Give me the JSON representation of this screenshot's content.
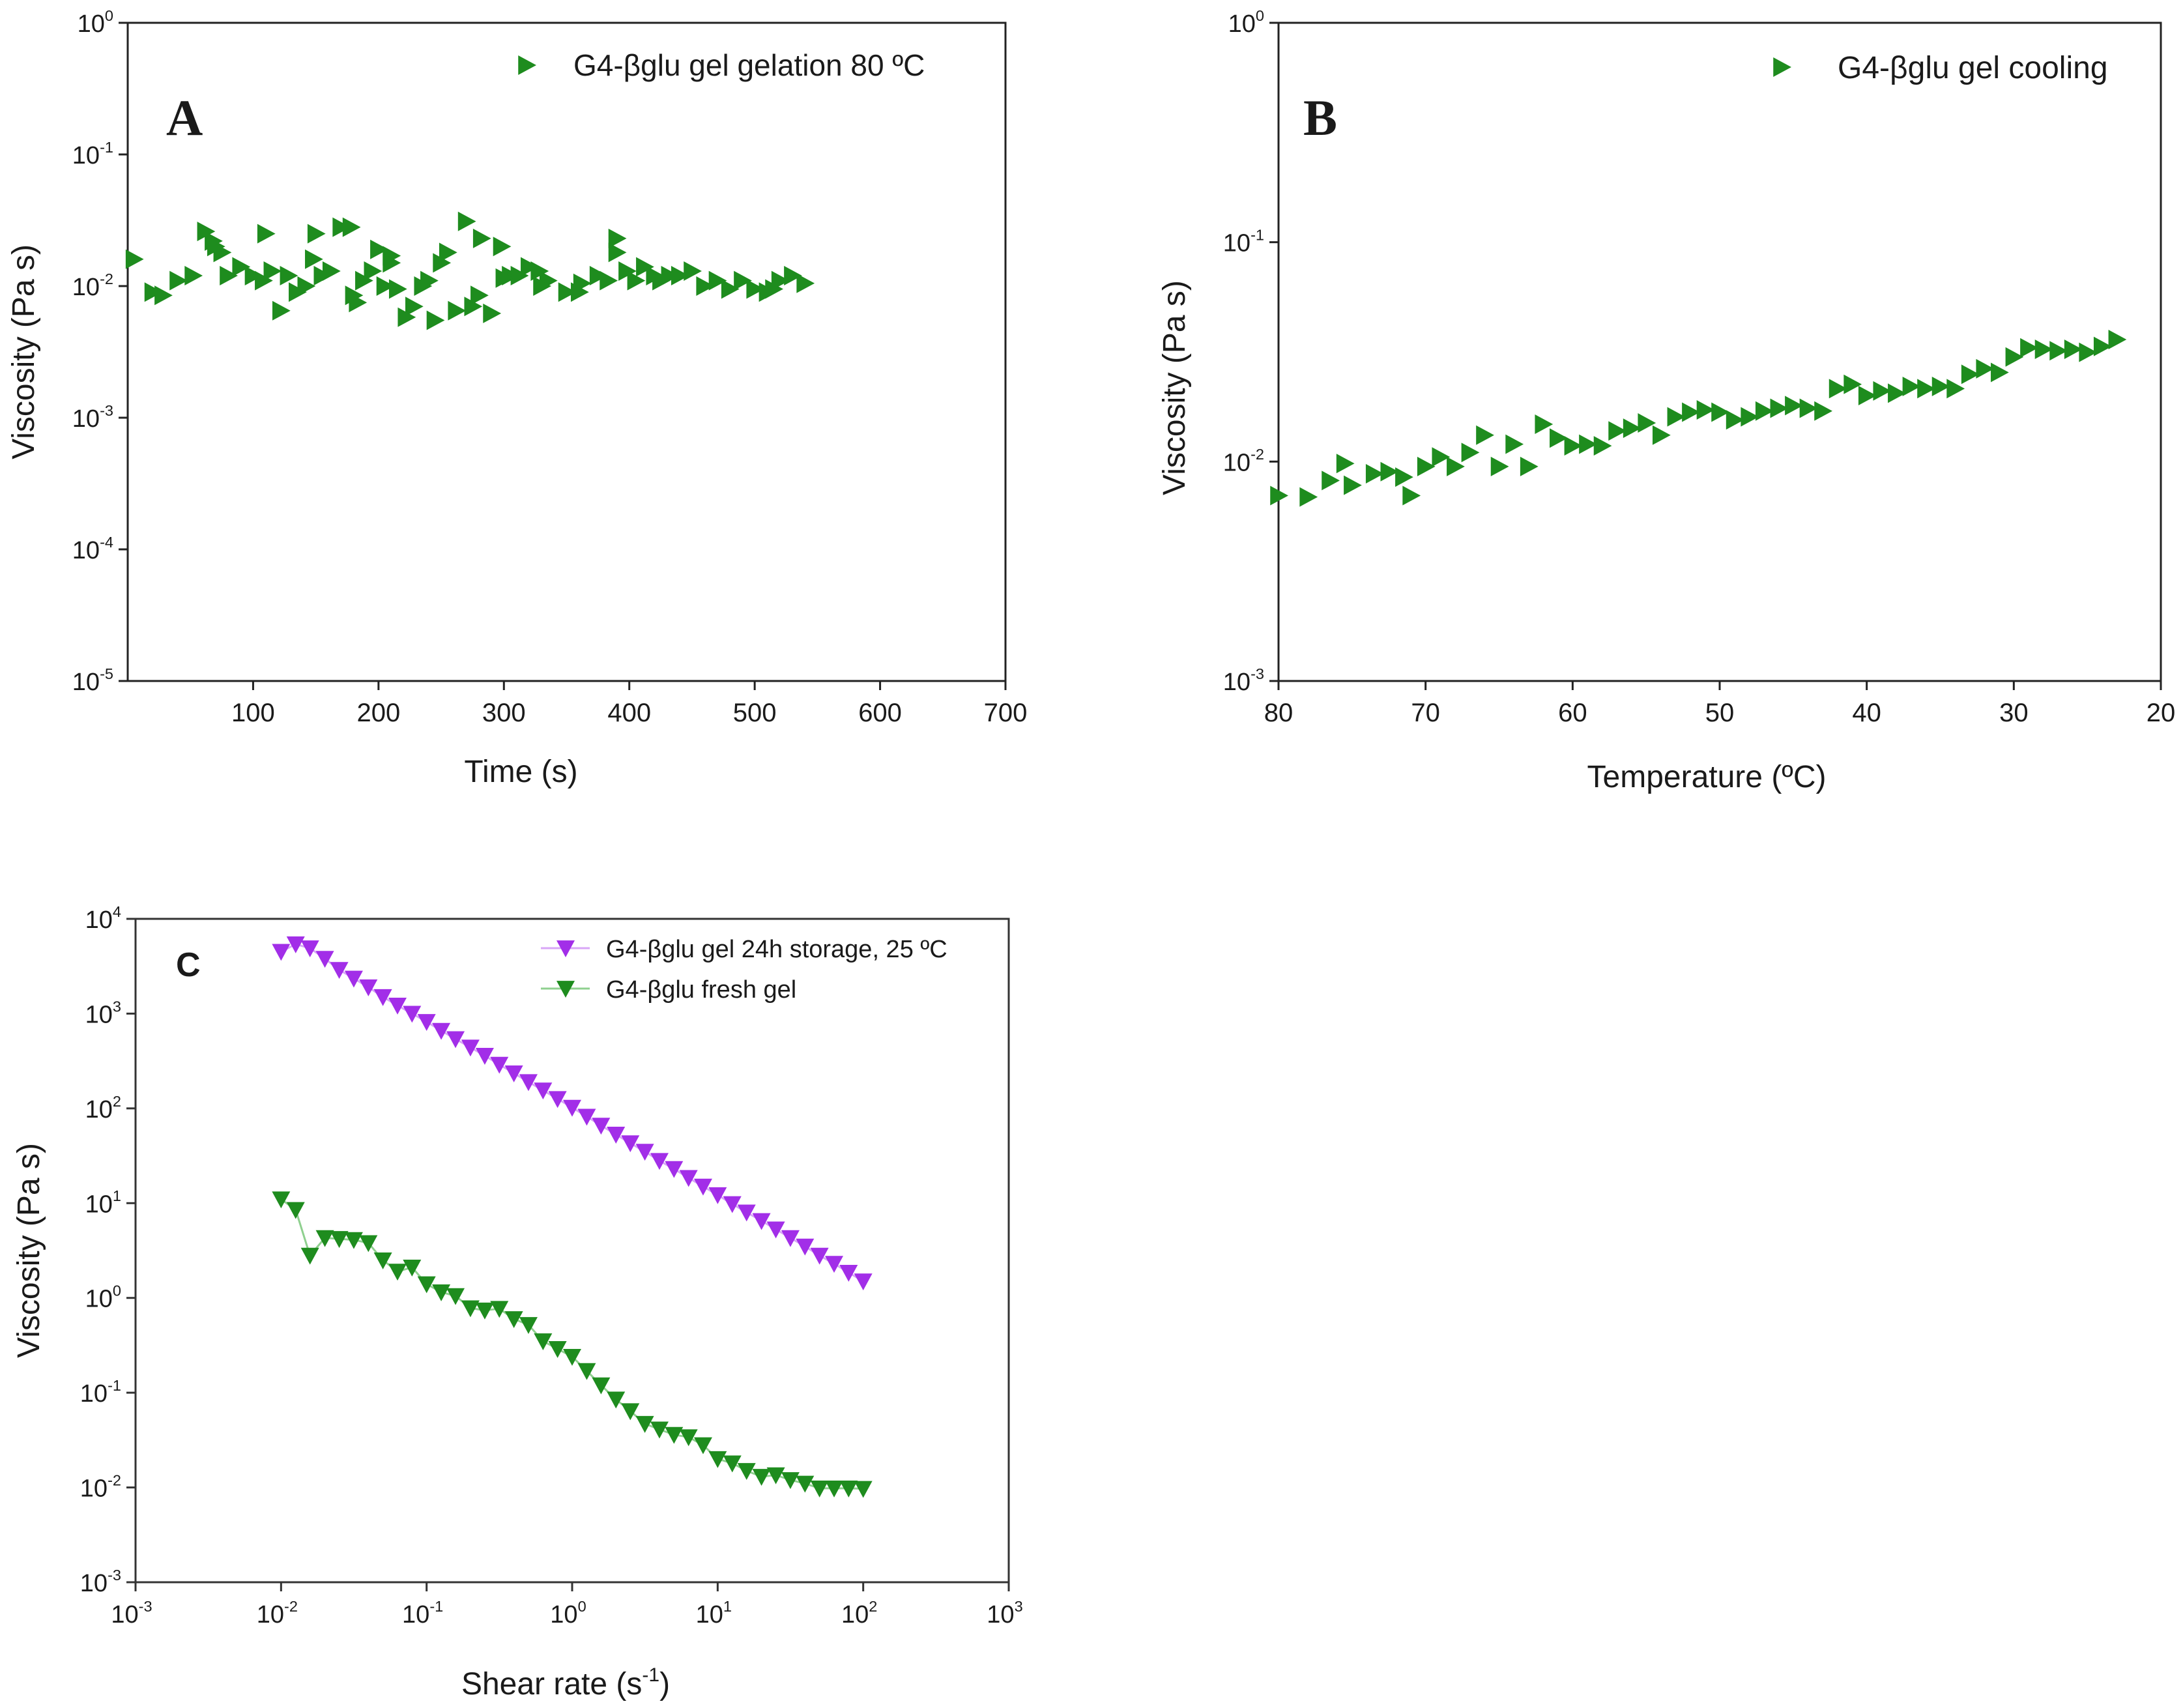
{
  "figure_colors": {
    "green": "#1e8c1e",
    "purple": "#a22ee8",
    "green_line": "#8fd08f",
    "purple_line": "#d8a6f7"
  },
  "chart_data": [
    {
      "panel": "A",
      "type": "scatter",
      "xlabel": "Time (s)",
      "ylabel": "Viscosity (Pa s)",
      "xscale": "linear",
      "yscale": "log",
      "xlim": [
        0,
        700
      ],
      "ylim": [
        1e-05,
        1
      ],
      "x_ticks": [
        100,
        200,
        300,
        400,
        500,
        600,
        700
      ],
      "x_tick_labels": [
        "100",
        "200",
        "300",
        "400",
        "500",
        "600",
        "700"
      ],
      "y_tick_exponents": [
        "-5",
        "-4",
        "-3",
        "-2",
        "-1",
        "0"
      ],
      "y_tick_base": "10",
      "legend_position": "top-right",
      "series": [
        {
          "name": "G4-βglu gel gelation 80 ºC",
          "marker": "triangle-right",
          "color": "#1e8c1e",
          "x": [
            5,
            20,
            28,
            40,
            52,
            62,
            68,
            75,
            80,
            90,
            100,
            108,
            115,
            122,
            128,
            135,
            142,
            148,
            155,
            162,
            170,
            178,
            183,
            188,
            195,
            200,
            205,
            210,
            215,
            222,
            228,
            235,
            245,
            250,
            255,
            262,
            270,
            275,
            282,
            290,
            298,
            305,
            312,
            320,
            328,
            335,
            350,
            362,
            375,
            383,
            390,
            398,
            405,
            412,
            420,
            432,
            440,
            450,
            470,
            480,
            490,
            500,
            510,
            515,
            530,
            540,
            70,
            110,
            150,
            180,
            210,
            240,
            280,
            300,
            330,
            360,
            390,
            425,
            460,
            520
          ],
          "y": [
            0.016,
            0.009,
            0.0085,
            0.011,
            0.012,
            0.026,
            0.022,
            0.018,
            0.012,
            0.014,
            0.012,
            0.011,
            0.013,
            0.0065,
            0.012,
            0.009,
            0.01,
            0.016,
            0.012,
            0.013,
            0.028,
            0.028,
            0.0075,
            0.011,
            0.013,
            0.019,
            0.01,
            0.017,
            0.0095,
            0.0058,
            0.007,
            0.01,
            0.0055,
            0.015,
            0.018,
            0.0065,
            0.031,
            0.007,
            0.023,
            0.0062,
            0.02,
            0.012,
            0.012,
            0.014,
            0.013,
            0.011,
            0.009,
            0.0105,
            0.012,
            0.011,
            0.023,
            0.013,
            0.011,
            0.014,
            0.012,
            0.012,
            0.012,
            0.013,
            0.011,
            0.0095,
            0.011,
            0.0095,
            0.009,
            0.0095,
            0.012,
            0.0105,
            0.02,
            0.025,
            0.025,
            0.0085,
            0.015,
            0.011,
            0.0085,
            0.0115,
            0.01,
            0.009,
            0.018,
            0.011,
            0.01,
            0.011
          ]
        }
      ]
    },
    {
      "panel": "B",
      "type": "scatter",
      "xlabel": "Temperature (ºC)",
      "ylabel": "Viscosity  (Pa s)",
      "xscale": "linear",
      "yscale": "log",
      "xlim": [
        80,
        20
      ],
      "ylim": [
        0.001,
        1
      ],
      "x_ticks": [
        80,
        70,
        60,
        50,
        40,
        30,
        20
      ],
      "x_tick_labels": [
        "80",
        "70",
        "60",
        "50",
        "40",
        "30",
        "20"
      ],
      "y_tick_exponents": [
        "-3",
        "-2",
        "-1",
        "0"
      ],
      "y_tick_base": "10",
      "legend_position": "top-right",
      "series": [
        {
          "name": "G4-βglu gel cooling",
          "marker": "triangle-right",
          "color": "#1e8c1e",
          "x": [
            80,
            78,
            76.5,
            75.5,
            75,
            73.5,
            72.5,
            71.5,
            71,
            70,
            69,
            68,
            67,
            66,
            65,
            64,
            63,
            62,
            61,
            60,
            59,
            58,
            57,
            56,
            55,
            54,
            53,
            52,
            51,
            50,
            49,
            48,
            47,
            46,
            45,
            44,
            43,
            42,
            41,
            40,
            39,
            38,
            37,
            36,
            35,
            34,
            33,
            32,
            31,
            30,
            29,
            28,
            27,
            26,
            25,
            24,
            23
          ],
          "y": [
            0.007,
            0.0069,
            0.0082,
            0.0098,
            0.0078,
            0.0088,
            0.009,
            0.0085,
            0.007,
            0.0095,
            0.0105,
            0.0095,
            0.011,
            0.0132,
            0.0095,
            0.012,
            0.0095,
            0.0148,
            0.0128,
            0.0118,
            0.012,
            0.0118,
            0.0138,
            0.0142,
            0.015,
            0.0132,
            0.016,
            0.0168,
            0.0172,
            0.0168,
            0.0155,
            0.016,
            0.017,
            0.0175,
            0.018,
            0.0175,
            0.017,
            0.0215,
            0.0225,
            0.02,
            0.021,
            0.0205,
            0.022,
            0.0215,
            0.022,
            0.0215,
            0.025,
            0.0265,
            0.0255,
            0.03,
            0.033,
            0.0325,
            0.032,
            0.0325,
            0.0315,
            0.0335,
            0.036
          ]
        }
      ]
    },
    {
      "panel": "C",
      "type": "line",
      "xlabel_main": "Shear rate (s",
      "xlabel_sup": "-1",
      "xlabel_end": ")",
      "ylabel": "Viscosity (Pa s)",
      "xscale": "log",
      "yscale": "log",
      "xlim": [
        0.001,
        1000
      ],
      "ylim": [
        0.001,
        10000
      ],
      "x_tick_exponents": [
        "-3",
        "-2",
        "-1",
        "0",
        "1",
        "2",
        "3"
      ],
      "y_tick_exponents": [
        "-3",
        "-2",
        "-1",
        "0",
        "1",
        "2",
        "3",
        "4"
      ],
      "tick_base": "10",
      "legend_position": "top-right",
      "series": [
        {
          "name": "G4-βglu gel 24h storage, 25 ºC",
          "marker": "triangle-down",
          "color": "#a22ee8",
          "line_color": "#d8a6f7",
          "x": [
            0.01,
            0.0126,
            0.0158,
            0.02,
            0.0251,
            0.0316,
            0.0398,
            0.0501,
            0.0631,
            0.0794,
            0.1,
            0.126,
            0.158,
            0.2,
            0.251,
            0.316,
            0.398,
            0.501,
            0.631,
            0.794,
            1,
            1.26,
            1.58,
            2,
            2.51,
            3.16,
            3.98,
            5.01,
            6.31,
            7.94,
            10,
            12.6,
            15.8,
            20,
            25.1,
            31.6,
            39.8,
            50.1,
            63.1,
            79.4,
            100
          ],
          "y": [
            4500,
            5400,
            4900,
            3800,
            2900,
            2350,
            1900,
            1500,
            1220,
            1000,
            820,
            660,
            540,
            440,
            360,
            290,
            235,
            190,
            155,
            126,
            102,
            82,
            66,
            53,
            43,
            35,
            28,
            23,
            18.5,
            15,
            12.2,
            9.8,
            8,
            6.5,
            5.3,
            4.3,
            3.5,
            2.8,
            2.3,
            1.85,
            1.5
          ]
        },
        {
          "name": "G4-βglu fresh gel",
          "marker": "triangle-down",
          "color": "#1e8c1e",
          "line_color": "#8fd08f",
          "x": [
            0.01,
            0.0126,
            0.0158,
            0.02,
            0.0251,
            0.0316,
            0.0398,
            0.0501,
            0.0631,
            0.0794,
            0.1,
            0.126,
            0.158,
            0.2,
            0.251,
            0.316,
            0.398,
            0.501,
            0.631,
            0.794,
            1,
            1.26,
            1.58,
            2,
            2.51,
            3.16,
            3.98,
            5.01,
            6.31,
            7.94,
            10,
            12.6,
            15.8,
            20,
            25.1,
            31.6,
            39.8,
            50.1,
            63.1,
            79.4,
            100
          ],
          "y": [
            11,
            8.5,
            2.8,
            4.3,
            4.2,
            4.1,
            3.8,
            2.5,
            1.9,
            2.1,
            1.4,
            1.15,
            1.05,
            0.78,
            0.74,
            0.77,
            0.6,
            0.52,
            0.35,
            0.29,
            0.24,
            0.17,
            0.12,
            0.085,
            0.064,
            0.047,
            0.041,
            0.036,
            0.034,
            0.028,
            0.02,
            0.018,
            0.015,
            0.013,
            0.0135,
            0.012,
            0.011,
            0.0098,
            0.0098,
            0.0098,
            0.0097
          ]
        }
      ]
    }
  ],
  "panel_labels": {
    "a": "A",
    "b": "B",
    "c": "C"
  }
}
